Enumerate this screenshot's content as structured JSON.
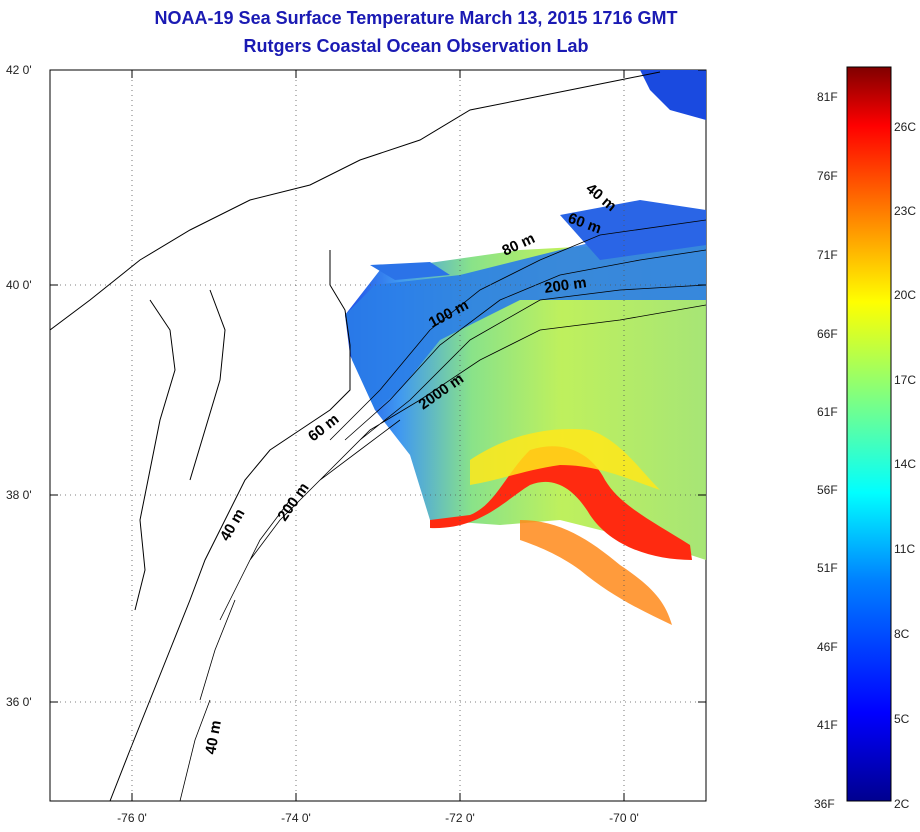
{
  "title": "NOAA-19 Sea Surface Temperature March 13, 2015 1716 GMT",
  "subtitle": "Rutgers Coastal Ocean Observation Lab",
  "map": {
    "lat_labels": [
      "42 0'",
      "40 0'",
      "38 0'",
      "36 0'"
    ],
    "lon_labels": [
      "-76 0'",
      "-74 0'",
      "-72 0'",
      "-70 0'"
    ],
    "isobath_labels": [
      "40 m",
      "60 m",
      "80 m",
      "200 m",
      "100 m",
      "2000 m",
      "60 m",
      "40 m",
      "200 m",
      "40 m"
    ]
  },
  "colorbar": {
    "fahrenheit_labels": [
      "81F",
      "76F",
      "71F",
      "66F",
      "61F",
      "56F",
      "51F",
      "46F",
      "41F",
      "36F"
    ],
    "celsius_labels": [
      "26C",
      "23C",
      "20C",
      "17C",
      "14C",
      "11C",
      "8C",
      "5C",
      "2C"
    ],
    "colors": [
      "#00008f",
      "#0000ff",
      "#0080ff",
      "#00ffff",
      "#80ff80",
      "#ffff00",
      "#ff8000",
      "#ff0000",
      "#800000"
    ]
  }
}
